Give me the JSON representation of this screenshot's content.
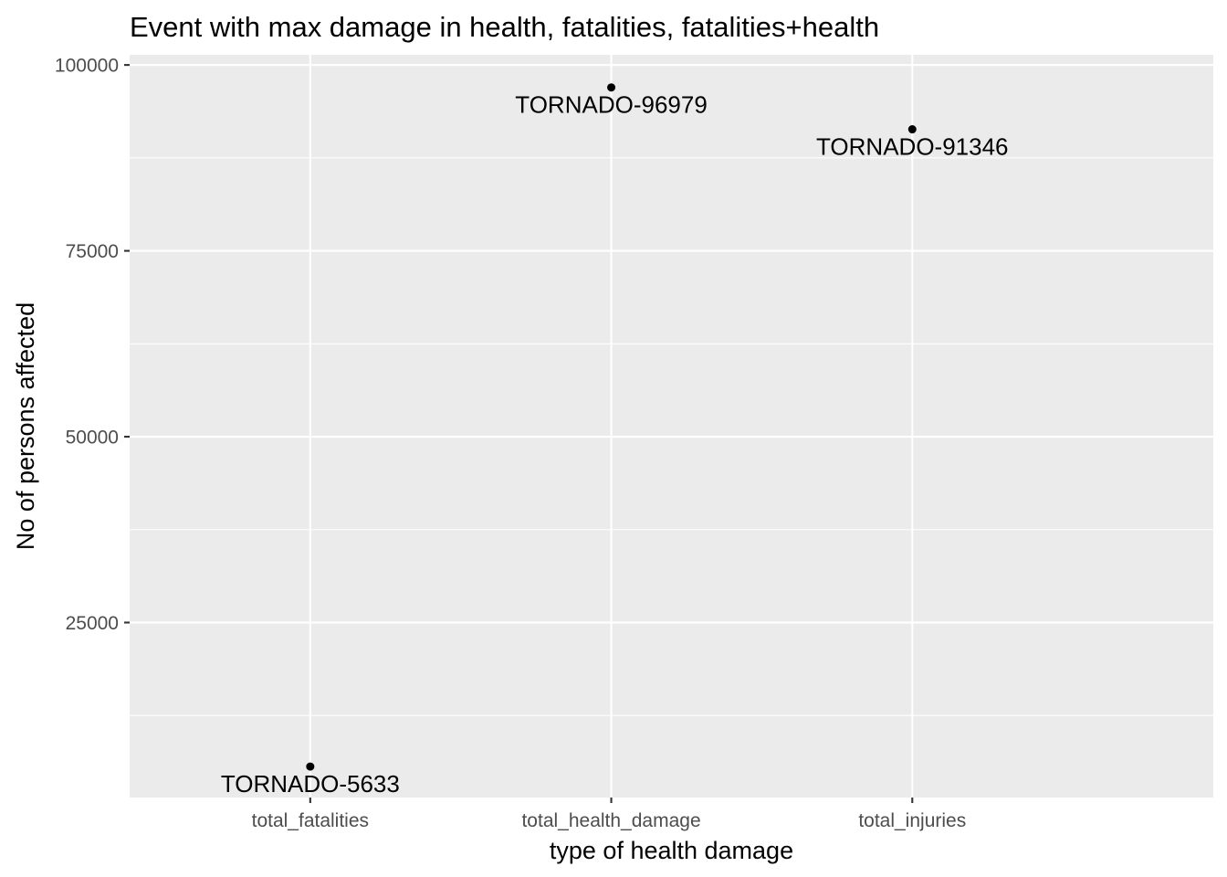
{
  "chart_data": {
    "type": "scatter",
    "title": "Event with max damage in health, fatalities, fatalities+health",
    "xlabel": "type of health damage",
    "ylabel": "No of persons affected",
    "categories": [
      "total_fatalities",
      "total_health_damage",
      "total_injuries"
    ],
    "points": [
      {
        "category": "total_fatalities",
        "y": 5633,
        "label": "TORNADO-5633"
      },
      {
        "category": "total_health_damage",
        "y": 96979,
        "label": "TORNADO-96979"
      },
      {
        "category": "total_injuries",
        "y": 91346,
        "label": "TORNADO-91346"
      }
    ],
    "yticks": [
      25000,
      50000,
      75000,
      100000
    ],
    "ytick_labels": [
      "25000",
      "50000",
      "75000",
      "100000"
    ],
    "ylim": [
      1466,
      101366
    ],
    "grid": true,
    "legend": "none",
    "colors": {
      "panel_background": "#ebebeb",
      "gridline": "#ffffff",
      "point": "#000000",
      "tick_text": "#4d4d4d",
      "tick_mark": "#333333"
    }
  }
}
